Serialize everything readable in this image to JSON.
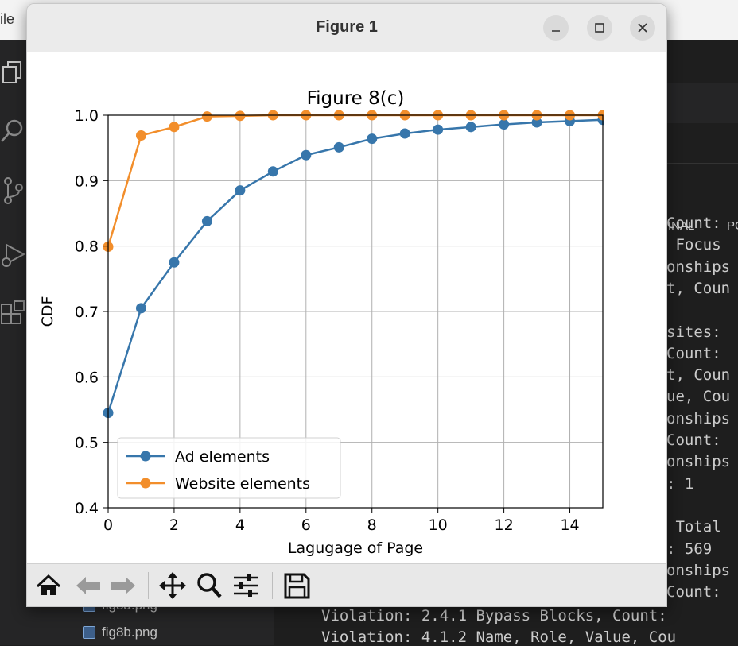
{
  "background_editor": {
    "menu_first_item": "ile",
    "explorer_files": [
      "fig8a.png",
      "fig8b.png"
    ],
    "panel_tabs": [
      "INAL",
      "PC"
    ],
    "terminal_lines": [
      "Count:",
      " Focus",
      "onships",
      "t, Coun",
      "",
      "sites:",
      "Count:",
      "t, Coun",
      "ue, Cou",
      "onships",
      "Count:",
      "onships",
      ": 1",
      "",
      " Total",
      ": 569",
      "onships",
      "Count:"
    ],
    "terminal_bottom_lines": [
      "Violation: 2.4.1 Bypass Blocks, Count:",
      "Violation: 4.1.2 Name, Role, Value, Cou"
    ]
  },
  "figure_window": {
    "title": "Figure 1",
    "buttons": [
      "minimize",
      "maximize",
      "close"
    ],
    "toolbar": [
      "home-icon",
      "back-icon",
      "forward-icon",
      "pan-icon",
      "zoom-icon",
      "configure-subplots-icon",
      "save-icon"
    ]
  },
  "chart_data": {
    "type": "line",
    "title": "Figure 8(c)",
    "xlabel": "Lagugage of Page",
    "ylabel": "CDF",
    "xlim": [
      0,
      15
    ],
    "ylim": [
      0.4,
      1.0
    ],
    "xticks": [
      "0",
      "2",
      "4",
      "6",
      "8",
      "10",
      "12",
      "14"
    ],
    "yticks": [
      "0.4",
      "0.5",
      "0.6",
      "0.7",
      "0.8",
      "0.9",
      "1.0"
    ],
    "grid": true,
    "legend_position": "lower-left",
    "series": [
      {
        "name": "Ad elements",
        "color": "#3776ab",
        "x": [
          0,
          1,
          2,
          3,
          4,
          5,
          6,
          7,
          8,
          9,
          10,
          11,
          12,
          13,
          14,
          15
        ],
        "y": [
          0.545,
          0.705,
          0.775,
          0.838,
          0.885,
          0.914,
          0.939,
          0.951,
          0.964,
          0.972,
          0.978,
          0.982,
          0.986,
          0.989,
          0.991,
          0.993
        ]
      },
      {
        "name": "Website elements",
        "color": "#f28e2b",
        "x": [
          0,
          1,
          2,
          3,
          4,
          5,
          6,
          7,
          8,
          9,
          10,
          11,
          12,
          13,
          14,
          15
        ],
        "y": [
          0.799,
          0.969,
          0.982,
          0.998,
          0.999,
          1.0,
          1.0,
          1.0,
          1.0,
          1.0,
          1.0,
          1.0,
          1.0,
          1.0,
          1.0,
          1.0
        ]
      }
    ]
  }
}
